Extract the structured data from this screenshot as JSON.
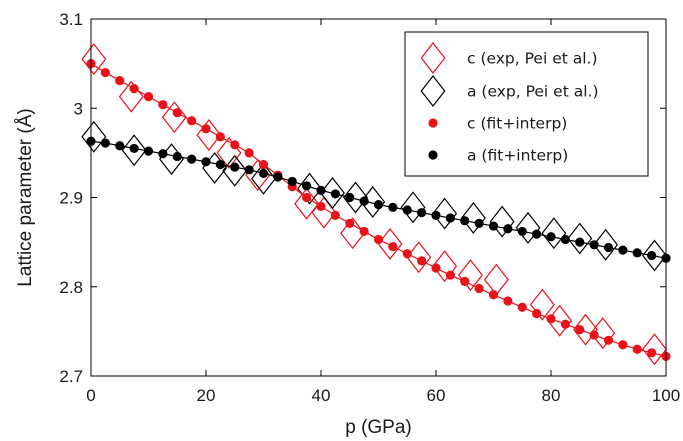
{
  "chart_data": {
    "type": "scatter",
    "xlabel": "p (GPa)",
    "ylabel": "Lattice parameter (Å)",
    "xlim": [
      0,
      100
    ],
    "ylim": [
      2.7,
      3.1
    ],
    "xticks": [
      0,
      20,
      40,
      60,
      80,
      100
    ],
    "xtick_labels": [
      "0",
      "20",
      "40",
      "60",
      "80",
      "100"
    ],
    "yticks": [
      2.7,
      2.8,
      2.9,
      3.0,
      3.1
    ],
    "ytick_labels": [
      "2.7",
      "2.8",
      "2.9",
      "3",
      "3.1"
    ],
    "grid": false,
    "legend_position": "top-right",
    "series": [
      {
        "name": "c (exp, Pei et al.)",
        "marker": "diamond-open",
        "color": "#e8121b",
        "x": [
          0.5,
          7,
          14.5,
          20.5,
          24,
          29,
          37.5,
          40.5,
          45.5,
          52,
          57,
          61.5,
          66,
          70.5,
          78.5,
          81.5,
          86,
          89,
          98
        ],
        "y": [
          3.055,
          3.013,
          2.99,
          2.97,
          2.95,
          2.925,
          2.893,
          2.883,
          2.86,
          2.848,
          2.833,
          2.823,
          2.813,
          2.808,
          2.78,
          2.762,
          2.752,
          2.748,
          2.73
        ]
      },
      {
        "name": "a (exp, Pei et al.)",
        "marker": "diamond-open",
        "color": "#000000",
        "x": [
          0.5,
          7.5,
          14,
          21.5,
          25,
          30,
          38,
          42,
          46,
          49,
          56,
          61.5,
          66.5,
          71.5,
          76,
          80.5,
          85,
          89.5,
          98
        ],
        "y": [
          2.968,
          2.953,
          2.943,
          2.933,
          2.93,
          2.921,
          2.91,
          2.905,
          2.9,
          2.895,
          2.889,
          2.882,
          2.877,
          2.873,
          2.866,
          2.86,
          2.854,
          2.847,
          2.835
        ]
      },
      {
        "name": "c (fit+interp)",
        "marker": "dot",
        "color": "#e8121b",
        "x": [
          0,
          2.5,
          5,
          7.5,
          10,
          12.5,
          15,
          17.5,
          20,
          22.5,
          25,
          27.5,
          30,
          32.5,
          35,
          37.5,
          40,
          42.5,
          45,
          47.5,
          50,
          52.5,
          55,
          57.5,
          60,
          62.5,
          65,
          67.5,
          70,
          72.5,
          75,
          77.5,
          80,
          82.5,
          85,
          87.5,
          90,
          92.5,
          95,
          97.5,
          100
        ],
        "y": [
          3.05,
          3.04,
          3.031,
          3.022,
          3.013,
          3.004,
          2.995,
          2.986,
          2.977,
          2.968,
          2.959,
          2.95,
          2.937,
          2.925,
          2.912,
          2.9,
          2.89,
          2.88,
          2.871,
          2.862,
          2.853,
          2.845,
          2.837,
          2.829,
          2.821,
          2.813,
          2.806,
          2.798,
          2.791,
          2.784,
          2.777,
          2.77,
          2.764,
          2.758,
          2.752,
          2.746,
          2.74,
          2.735,
          2.73,
          2.726,
          2.722
        ]
      },
      {
        "name": "a (fit+interp)",
        "marker": "dot",
        "color": "#000000",
        "x": [
          0,
          2.5,
          5,
          7.5,
          10,
          12.5,
          15,
          17.5,
          20,
          22.5,
          25,
          27.5,
          30,
          32.5,
          35,
          37.5,
          40,
          42.5,
          45,
          47.5,
          50,
          52.5,
          55,
          57.5,
          60,
          62.5,
          65,
          67.5,
          70,
          72.5,
          75,
          77.5,
          80,
          82.5,
          85,
          87.5,
          90,
          92.5,
          95,
          97.5,
          100
        ],
        "y": [
          2.963,
          2.961,
          2.958,
          2.955,
          2.952,
          2.949,
          2.946,
          2.943,
          2.94,
          2.937,
          2.934,
          2.931,
          2.927,
          2.923,
          2.918,
          2.913,
          2.908,
          2.904,
          2.9,
          2.896,
          2.892,
          2.889,
          2.886,
          2.883,
          2.88,
          2.877,
          2.874,
          2.871,
          2.868,
          2.865,
          2.862,
          2.859,
          2.856,
          2.853,
          2.85,
          2.847,
          2.844,
          2.841,
          2.838,
          2.835,
          2.832
        ]
      }
    ]
  }
}
